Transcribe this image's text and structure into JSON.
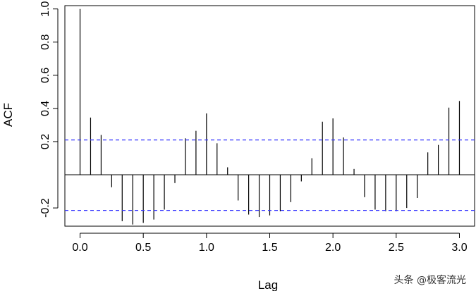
{
  "chart_data": {
    "type": "bar",
    "xlabel": "Lag",
    "ylabel": "ACF",
    "xlim": [
      -0.12,
      3.12
    ],
    "ylim": [
      -0.31,
      1.02
    ],
    "x_ticks": [
      "0.0",
      "0.5",
      "1.0",
      "1.5",
      "2.0",
      "2.5",
      "3.0"
    ],
    "y_ticks": [
      "-0.2",
      "0.2",
      "0.4",
      "0.6",
      "0.8",
      "1.0"
    ],
    "confidence_bounds": [
      0.21,
      -0.215
    ],
    "lags": [
      0.0,
      0.0833,
      0.1667,
      0.25,
      0.3333,
      0.4167,
      0.5,
      0.5833,
      0.6667,
      0.75,
      0.8333,
      0.9167,
      1.0,
      1.0833,
      1.1667,
      1.25,
      1.3333,
      1.4167,
      1.5,
      1.5833,
      1.6667,
      1.75,
      1.8333,
      1.9167,
      2.0,
      2.0833,
      2.1667,
      2.25,
      2.3333,
      2.4167,
      2.5,
      2.5833,
      2.6667,
      2.75,
      2.8333,
      2.9167,
      3.0
    ],
    "values": [
      1.0,
      0.345,
      0.24,
      -0.075,
      -0.28,
      -0.3,
      -0.29,
      -0.27,
      -0.21,
      -0.05,
      0.22,
      0.265,
      0.37,
      0.19,
      0.045,
      -0.155,
      -0.24,
      -0.255,
      -0.245,
      -0.22,
      -0.165,
      -0.04,
      0.1,
      0.32,
      0.34,
      0.225,
      0.035,
      -0.135,
      -0.21,
      -0.22,
      -0.22,
      -0.2,
      -0.14,
      0.135,
      0.18,
      0.405,
      0.445
    ],
    "grid": false
  },
  "watermark": "头条 @极客流光",
  "colors": {
    "bars": "#000000",
    "confidence": "#3333ff",
    "zero_line": "#000000"
  }
}
